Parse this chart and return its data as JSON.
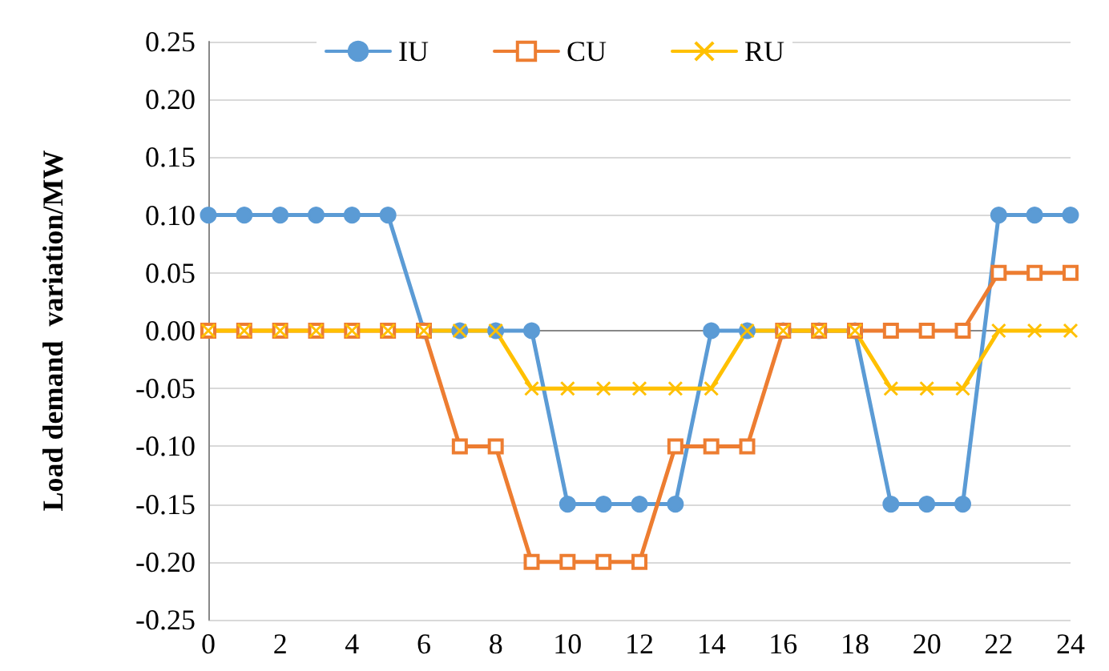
{
  "chart_data": {
    "type": "line",
    "ylabel": "Load demand  variation/MW",
    "x": [
      0,
      1,
      2,
      3,
      4,
      5,
      6,
      7,
      8,
      9,
      10,
      11,
      12,
      13,
      14,
      15,
      16,
      17,
      18,
      19,
      20,
      21,
      22,
      23,
      24
    ],
    "series": [
      {
        "name": "IU",
        "color": "#5b9bd5",
        "marker": "circle",
        "values": [
          0.1,
          0.1,
          0.1,
          0.1,
          0.1,
          0.1,
          0,
          0,
          0,
          0,
          -0.15,
          -0.15,
          -0.15,
          -0.15,
          0,
          0,
          0,
          0,
          0,
          -0.15,
          -0.15,
          -0.15,
          0.1,
          0.1,
          0.1
        ]
      },
      {
        "name": "CU",
        "color": "#ed7d31",
        "marker": "square",
        "values": [
          0,
          0,
          0,
          0,
          0,
          0,
          0,
          -0.1,
          -0.1,
          -0.2,
          -0.2,
          -0.2,
          -0.2,
          -0.1,
          -0.1,
          -0.1,
          0,
          0,
          0,
          0,
          0,
          0,
          0.05,
          0.05,
          0.05
        ]
      },
      {
        "name": "RU",
        "color": "#ffc000",
        "marker": "cross",
        "values": [
          0,
          0,
          0,
          0,
          0,
          0,
          0,
          0,
          0,
          -0.05,
          -0.05,
          -0.05,
          -0.05,
          -0.05,
          -0.05,
          0,
          0,
          0,
          0,
          -0.05,
          -0.05,
          -0.05,
          0,
          0,
          0
        ]
      }
    ],
    "xlim": [
      0,
      24
    ],
    "xticks": [
      0,
      2,
      4,
      6,
      8,
      10,
      12,
      14,
      16,
      18,
      20,
      22,
      24
    ],
    "ylim": [
      -0.25,
      0.25
    ],
    "yticks": [
      {
        "value": -0.25,
        "label": "-0.25"
      },
      {
        "value": -0.2,
        "label": "-0.20"
      },
      {
        "value": -0.15,
        "label": "-0.15"
      },
      {
        "value": -0.1,
        "label": "-0.10"
      },
      {
        "value": -0.05,
        "label": "-0.05"
      },
      {
        "value": 0,
        "label": "0.00"
      },
      {
        "value": 0.05,
        "label": "0.05"
      },
      {
        "value": 0.1,
        "label": "0.10"
      },
      {
        "value": 0.15,
        "label": "0.15"
      },
      {
        "value": 0.2,
        "label": "0.20"
      },
      {
        "value": 0.25,
        "label": "0.25"
      }
    ],
    "grid": "y",
    "legend": "top",
    "line_style": "solid"
  }
}
